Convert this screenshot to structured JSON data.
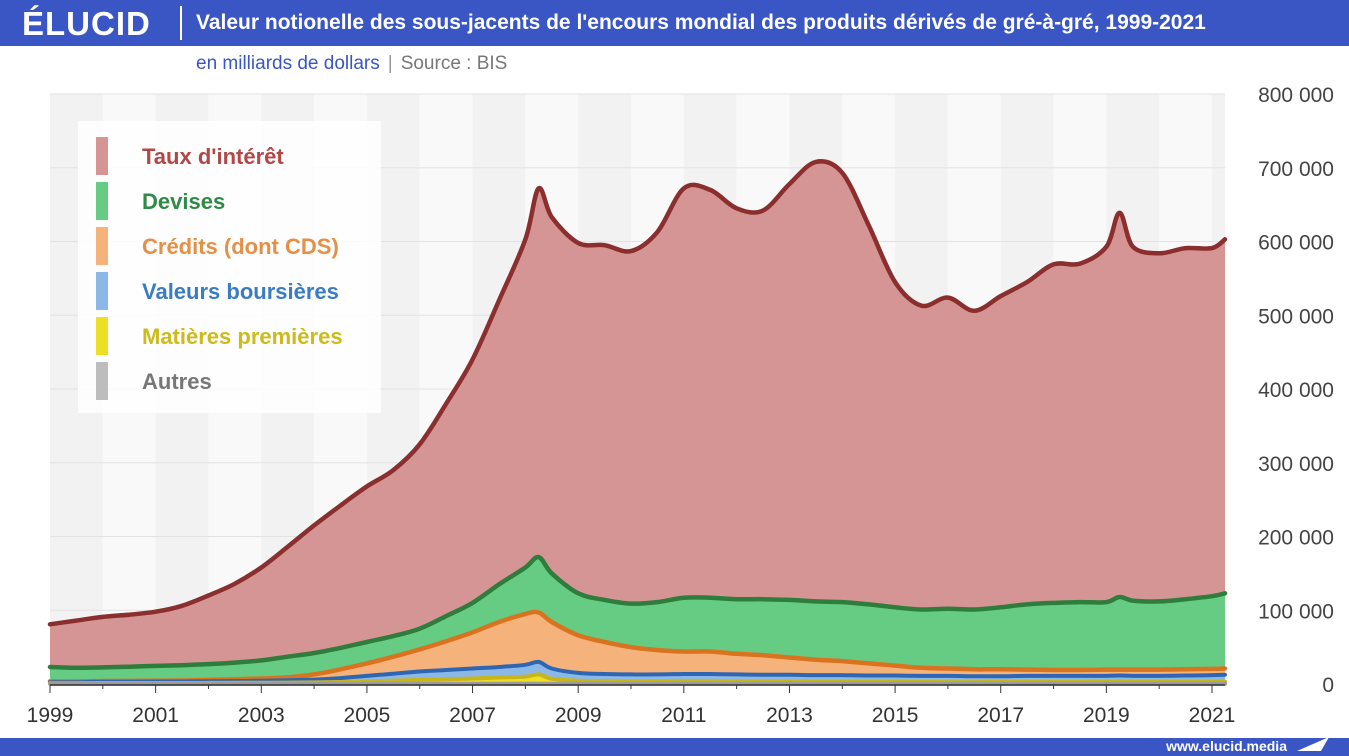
{
  "brand": {
    "logo": "ÉLUCID",
    "url": "www.elucid.media"
  },
  "header": {
    "title": "Valeur notionelle des sous-jacents de l'encours mondial des produits dérivés de gré-à-gré, 1999-2021",
    "subtitle_unit": "en milliards de dollars",
    "subtitle_sep": "|",
    "subtitle_source": "Source : BIS"
  },
  "chart_data": {
    "type": "area",
    "stacked": true,
    "legend_position": "top-left",
    "grid": true,
    "x_ticks": [
      "1999",
      "2001",
      "2003",
      "2005",
      "2007",
      "2009",
      "2011",
      "2013",
      "2015",
      "2017",
      "2019",
      "2021"
    ],
    "y_ticks": [
      "0",
      "100 000",
      "200 000",
      "300 000",
      "400 000",
      "500 000",
      "600 000",
      "700 000",
      "800 000"
    ],
    "xlim": [
      1999.0,
      2021.5
    ],
    "ylim": [
      0,
      800000
    ],
    "x": [
      1999.0,
      1999.5,
      2000.0,
      2000.5,
      2001.0,
      2001.5,
      2002.0,
      2002.5,
      2003.0,
      2003.5,
      2004.0,
      2004.5,
      2005.0,
      2005.5,
      2006.0,
      2006.5,
      2007.0,
      2007.5,
      2008.0,
      2008.25,
      2008.5,
      2009.0,
      2009.5,
      2010.0,
      2010.5,
      2011.0,
      2011.5,
      2012.0,
      2012.5,
      2013.0,
      2013.5,
      2014.0,
      2014.5,
      2015.0,
      2015.5,
      2016.0,
      2016.5,
      2017.0,
      2017.5,
      2018.0,
      2018.5,
      2019.0,
      2019.25,
      2019.5,
      2020.0,
      2020.5,
      2021.0,
      2021.5
    ],
    "series": [
      {
        "name": "Taux d'intérêt",
        "label_color": "#b04848",
        "fill": "#d69595",
        "stroke": "#8b2e2e",
        "total": [
          81000,
          86000,
          91000,
          94000,
          98000,
          106000,
          120000,
          136000,
          158000,
          186000,
          215000,
          242000,
          268000,
          290000,
          325000,
          380000,
          440000,
          520000,
          603000,
          672000,
          633000,
          598000,
          595000,
          587000,
          613000,
          672000,
          670000,
          645000,
          642000,
          678000,
          708000,
          693000,
          622000,
          545000,
          513000,
          524000,
          506000,
          526000,
          545000,
          569000,
          570000,
          593000,
          639000,
          593000,
          584000,
          591000,
          591000,
          603000
        ]
      },
      {
        "name": "Devises",
        "label_color": "#2f8a46",
        "fill": "#66cc84",
        "stroke": "#2e7d3c",
        "total": [
          23000,
          22000,
          22500,
          23500,
          24500,
          25500,
          27000,
          29000,
          32000,
          37000,
          42000,
          49000,
          57000,
          65000,
          75000,
          92000,
          110000,
          135000,
          158000,
          172000,
          150000,
          123000,
          114000,
          109000,
          111000,
          117000,
          117000,
          115000,
          115000,
          114000,
          112000,
          111000,
          108000,
          104000,
          101000,
          102000,
          101000,
          104000,
          108000,
          110000,
          111000,
          111000,
          118000,
          113000,
          112000,
          115000,
          119000,
          123000
        ]
      },
      {
        "name": "Crédits (dont CDS)",
        "label_color": "#e59048",
        "fill": "#f5b27a",
        "stroke": "#d9731f",
        "total": [
          3500,
          3500,
          4000,
          4200,
          4500,
          4800,
          5500,
          6500,
          7500,
          9000,
          13000,
          20000,
          28000,
          37000,
          47000,
          58000,
          70000,
          84000,
          95000,
          97000,
          84000,
          66000,
          57000,
          50000,
          46000,
          44000,
          44000,
          41000,
          39000,
          36000,
          33000,
          31000,
          28000,
          25000,
          22000,
          21000,
          20000,
          20000,
          19500,
          19000,
          19000,
          19500,
          19500,
          19500,
          19500,
          20000,
          20500,
          21000
        ]
      },
      {
        "name": "Valeurs boursières",
        "label_color": "#3a7cc4",
        "fill": "#8cb8e8",
        "stroke": "#2f66b3",
        "total": [
          2500,
          2500,
          3000,
          3000,
          3200,
          3400,
          3700,
          4000,
          4500,
          5000,
          6000,
          8000,
          11000,
          14000,
          17000,
          19000,
          21000,
          23000,
          26000,
          30000,
          21000,
          15000,
          13500,
          13000,
          13000,
          13500,
          13500,
          13000,
          12500,
          12500,
          12000,
          12000,
          11500,
          11500,
          11000,
          11000,
          10500,
          10500,
          11000,
          11000,
          11000,
          11000,
          11500,
          11000,
          11000,
          11500,
          12000,
          12500
        ]
      },
      {
        "name": "Matières premières",
        "label_color": "#cdbb1c",
        "fill": "#ede024",
        "stroke": "#c8b51a",
        "total": [
          1200,
          1200,
          1300,
          1300,
          1400,
          1400,
          1500,
          1600,
          1700,
          1900,
          2200,
          2700,
          3500,
          4500,
          5500,
          6500,
          7500,
          8800,
          10000,
          13000,
          7000,
          4500,
          4000,
          3800,
          3800,
          3900,
          3800,
          3600,
          3400,
          3300,
          3200,
          3000,
          2900,
          2800,
          2700,
          2600,
          2600,
          2700,
          2800,
          2900,
          3000,
          3100,
          3200,
          3100,
          3000,
          3100,
          3200,
          3300
        ]
      },
      {
        "name": "Autres",
        "label_color": "#777777",
        "fill": "#bdbdbd",
        "stroke": "#9a9a9a",
        "total": [
          400,
          400,
          400,
          400,
          400,
          400,
          400,
          400,
          400,
          400,
          400,
          400,
          400,
          400,
          400,
          400,
          400,
          400,
          400,
          400,
          400,
          400,
          400,
          400,
          400,
          400,
          400,
          400,
          400,
          400,
          400,
          400,
          400,
          400,
          400,
          400,
          400,
          400,
          400,
          400,
          400,
          400,
          400,
          400,
          400,
          400,
          400,
          400
        ]
      }
    ]
  }
}
